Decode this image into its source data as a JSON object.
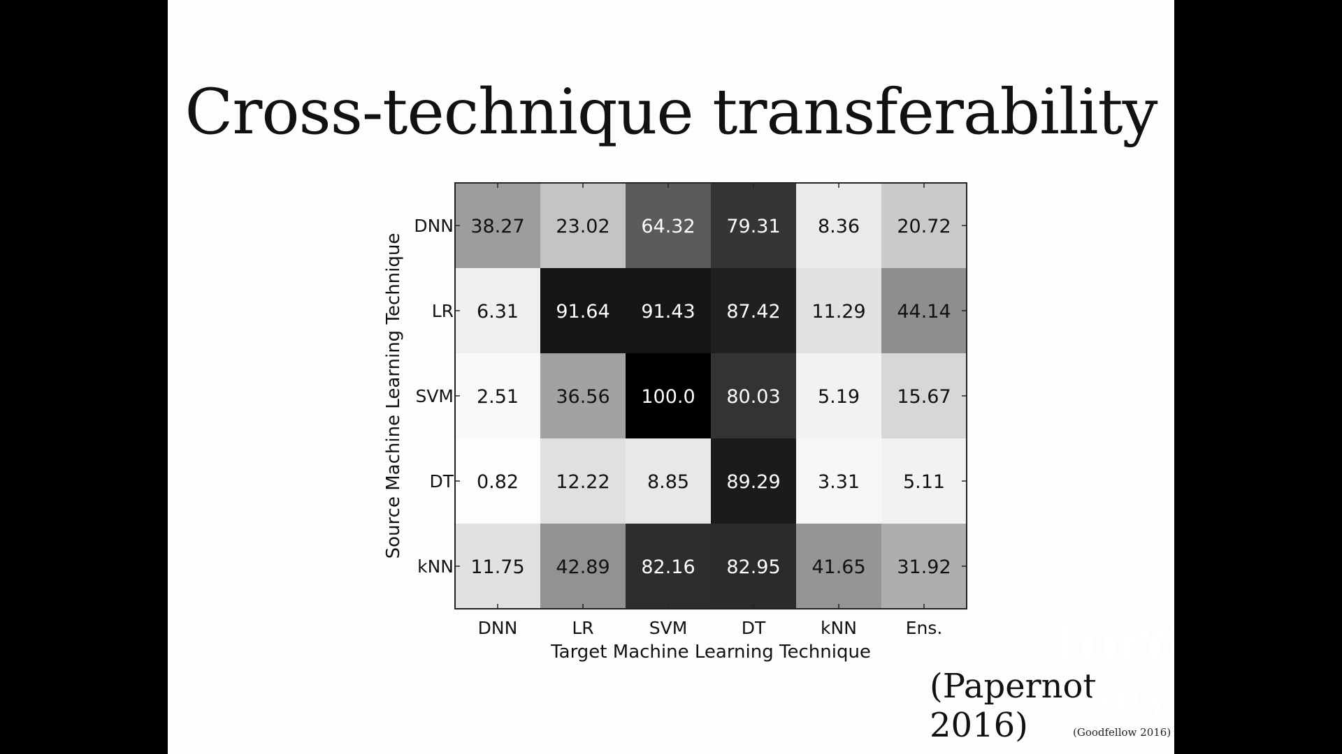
{
  "slide": {
    "title": "Cross-technique transferability",
    "citation": "(Papernot 2016)",
    "watermark_line1": "ford",
    "watermark_line2": "sity",
    "footer_credit": "(Goodfellow 2016)"
  },
  "chart_data": {
    "type": "heatmap",
    "title": "",
    "xlabel": "Target Machine Learning Technique",
    "ylabel": "Source Machine Learning Technique",
    "x_categories": [
      "DNN",
      "LR",
      "SVM",
      "DT",
      "kNN",
      "Ens."
    ],
    "y_categories": [
      "DNN",
      "LR",
      "SVM",
      "DT",
      "kNN"
    ],
    "values": [
      [
        38.27,
        23.02,
        64.32,
        79.31,
        8.36,
        20.72
      ],
      [
        6.31,
        91.64,
        91.43,
        87.42,
        11.29,
        44.14
      ],
      [
        2.51,
        36.56,
        100.0,
        80.03,
        5.19,
        15.67
      ],
      [
        0.82,
        12.22,
        8.85,
        89.29,
        3.31,
        5.11
      ],
      [
        11.75,
        42.89,
        82.16,
        82.95,
        41.65,
        31.92
      ]
    ],
    "value_labels": [
      [
        "38.27",
        "23.02",
        "64.32",
        "79.31",
        "8.36",
        "20.72"
      ],
      [
        "6.31",
        "91.64",
        "91.43",
        "87.42",
        "11.29",
        "44.14"
      ],
      [
        "2.51",
        "36.56",
        "100.0",
        "80.03",
        "5.19",
        "15.67"
      ],
      [
        "0.82",
        "12.22",
        "8.85",
        "89.29",
        "3.31",
        "5.11"
      ],
      [
        "11.75",
        "42.89",
        "82.16",
        "82.95",
        "41.65",
        "31.92"
      ]
    ],
    "colormap": "grayscale (white = 0, black = 100)",
    "vmin": 0,
    "vmax": 100,
    "grid": false,
    "legend": "none"
  }
}
